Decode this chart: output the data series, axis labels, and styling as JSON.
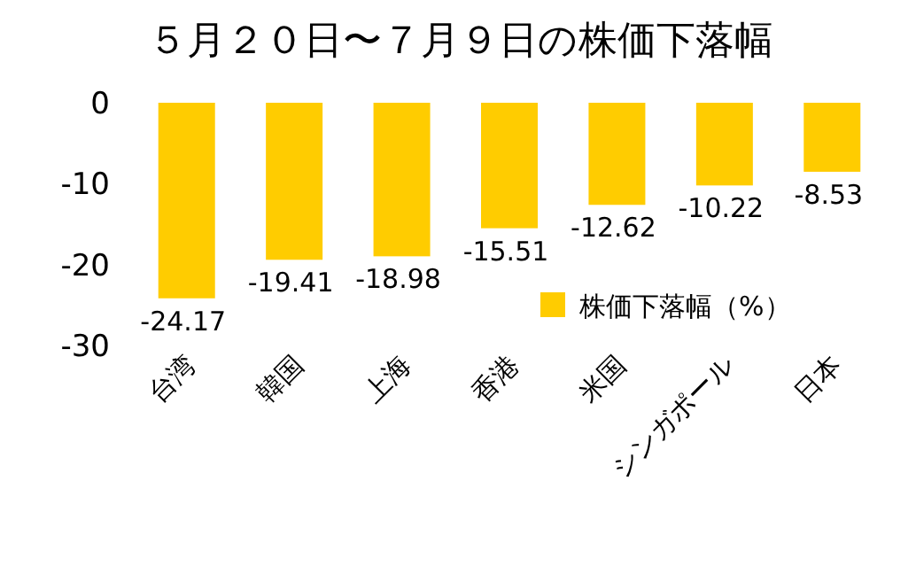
{
  "chart_data": {
    "type": "bar",
    "title": "５月２０日〜７月９日の株価下落幅",
    "categories": [
      "台湾",
      "韓国",
      "上海",
      "香港",
      "米国",
      "シンガポール",
      "日本"
    ],
    "series": [
      {
        "name": "株価下落幅（%）",
        "color": "#ffcc00",
        "values": [
          -24.17,
          -19.41,
          -18.98,
          -15.51,
          -12.62,
          -10.22,
          -8.53
        ]
      }
    ],
    "ylim": [
      -30,
      0
    ],
    "yticks": [
      0,
      -10,
      -20,
      -30
    ],
    "grid": false,
    "legend": "bottom right",
    "data_labels": true
  }
}
